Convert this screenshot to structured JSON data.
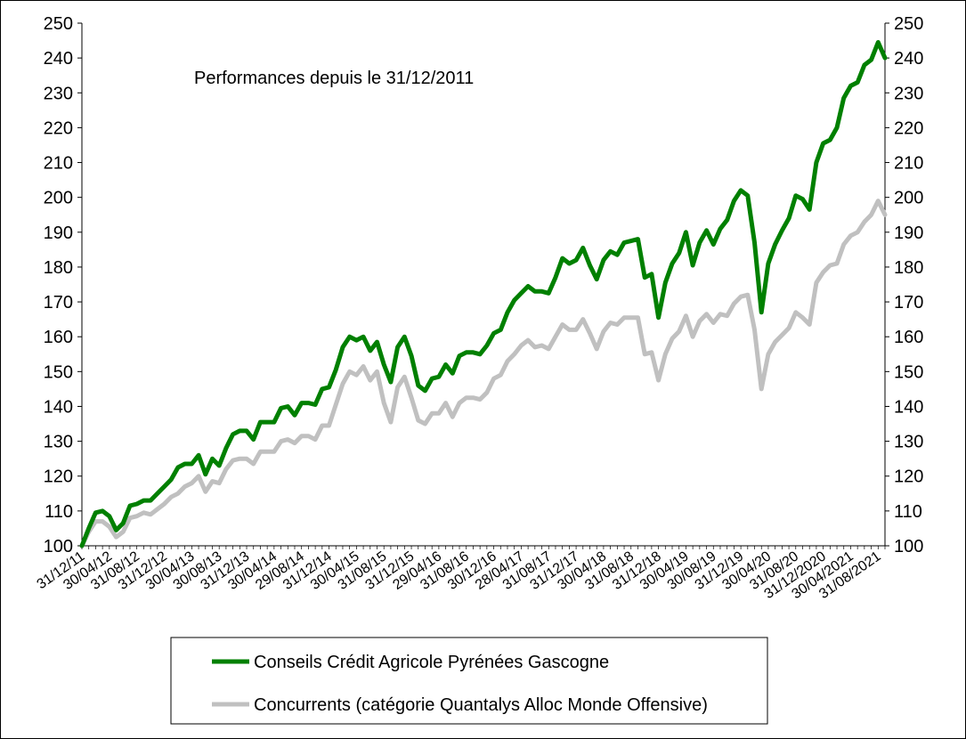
{
  "chart_data": {
    "type": "line",
    "title": "Performances depuis le 31/12/2011",
    "xlabel": "",
    "ylabel": "",
    "ylim": [
      100,
      250
    ],
    "yticks": [
      100,
      110,
      120,
      130,
      140,
      150,
      160,
      170,
      180,
      190,
      200,
      210,
      220,
      230,
      240,
      250
    ],
    "grid": false,
    "legend_placement": "bottom",
    "x_tick_labels": [
      "31/12/11",
      "30/04/12",
      "31/08/12",
      "31/12/12",
      "30/04/13",
      "30/08/13",
      "31/12/13",
      "30/04/14",
      "29/08/14",
      "31/12/14",
      "30/04/15",
      "31/08/15",
      "31/12/15",
      "29/04/16",
      "31/08/16",
      "30/12/16",
      "28/04/17",
      "31/08/17",
      "31/12/17",
      "30/04/18",
      "31/08/18",
      "31/12/18",
      "30/04/19",
      "30/08/19",
      "31/12/19",
      "30/04/20",
      "31/08/20",
      "31/12/2020",
      "30/04/2021",
      "31/08/2021"
    ],
    "x_tick_index": [
      0,
      4,
      8,
      12,
      16,
      20,
      24,
      28,
      32,
      36,
      40,
      44,
      48,
      52,
      56,
      60,
      64,
      68,
      72,
      76,
      80,
      84,
      88,
      92,
      96,
      100,
      104,
      108,
      112,
      116
    ],
    "series": [
      {
        "name": "Conseils Crédit Agricole Pyrénées Gascogne",
        "color": "#008000",
        "values": [
          100,
          105,
          109.5,
          110,
          108.5,
          104.5,
          106.5,
          111.5,
          112,
          113,
          113,
          115,
          117,
          119,
          122.5,
          123.5,
          123.5,
          126,
          120.5,
          125,
          123,
          128,
          132,
          133,
          133,
          130.5,
          135.5,
          135.5,
          135.5,
          139.5,
          140,
          137.5,
          141,
          141,
          140.5,
          145,
          145.5,
          150.5,
          157,
          160,
          159,
          160,
          156,
          158.5,
          152,
          147,
          157,
          160,
          154.5,
          146,
          144.5,
          148,
          148.5,
          152,
          149.5,
          154.5,
          155.5,
          155.5,
          155,
          157.5,
          161,
          162,
          167,
          170.5,
          172.5,
          174.5,
          173,
          173,
          172.5,
          177,
          182.5,
          181,
          182,
          185.5,
          180.5,
          176.5,
          182,
          184.5,
          183.5,
          187,
          187.5,
          188,
          177,
          178,
          165.5,
          175.5,
          181,
          184,
          190,
          180.5,
          187,
          190.5,
          186.5,
          191,
          193.5,
          199,
          202,
          200.5,
          187,
          167,
          181,
          186.5,
          190.5,
          194,
          200.5,
          199.5,
          196.5,
          210,
          215.5,
          216.5,
          220,
          228.5,
          232,
          233,
          238,
          239.5,
          244.5,
          240
        ]
      },
      {
        "name": "Concurrents (catégorie Quantalys Alloc Monde Offensive)",
        "color": "#c0c0c0",
        "values": [
          100,
          104,
          107,
          107,
          105.5,
          102.5,
          104,
          108,
          108.5,
          109.5,
          109,
          110.5,
          112,
          114,
          115,
          117,
          118,
          120,
          115.5,
          118.5,
          118,
          122,
          124.5,
          125,
          125,
          123.5,
          127,
          127,
          127,
          130,
          130.5,
          129.5,
          131.5,
          131.5,
          130.5,
          134.5,
          134.5,
          140.5,
          146.5,
          150,
          149,
          151.5,
          147.5,
          150,
          141,
          135.5,
          145.5,
          148.5,
          142.5,
          136,
          135,
          138,
          138,
          141,
          137,
          141,
          142.5,
          142.5,
          142,
          144,
          148,
          149,
          153,
          155,
          157.5,
          159,
          157,
          157.5,
          156.5,
          160,
          163.5,
          162,
          162,
          165,
          161,
          156.5,
          161.5,
          164,
          163.5,
          165.5,
          165.5,
          165.5,
          155,
          155.5,
          147.5,
          155,
          159.5,
          161.5,
          166,
          160,
          164.5,
          166.5,
          164,
          166.5,
          166,
          169.5,
          171.5,
          172,
          162,
          145,
          155,
          158.5,
          160.5,
          162.5,
          167,
          165.5,
          163.5,
          175.5,
          178.5,
          180.5,
          181,
          186.5,
          189,
          190,
          193,
          195,
          199,
          195
        ]
      }
    ]
  }
}
